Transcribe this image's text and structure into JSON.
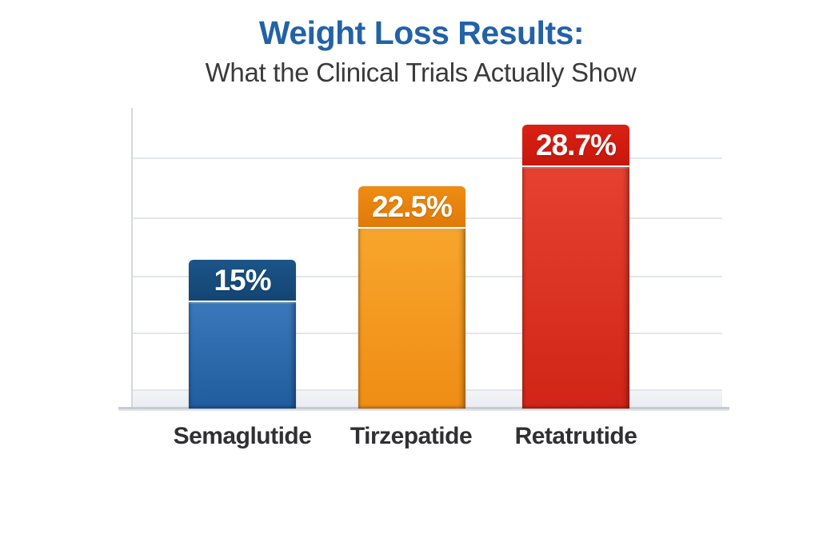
{
  "header": {
    "title": "Weight Loss Results:",
    "subtitle": "What the Clinical Trials Actually Show"
  },
  "chart_data": {
    "type": "bar",
    "title": "Weight Loss Results: What the Clinical Trials Actually Show",
    "categories": [
      "Semaglutide",
      "Tirzepatide",
      "Retatrutide"
    ],
    "values": [
      15,
      22.5,
      28.7
    ],
    "value_labels": [
      "15%",
      "22.5%",
      "28.7%"
    ],
    "xlabel": "",
    "ylabel": "",
    "ylim": [
      0,
      30.3
    ],
    "grid": true,
    "legend": false,
    "y_tick_labels_shown": false,
    "series_colors": [
      {
        "cap_top": "#1b5587",
        "cap_bottom": "#134573",
        "body_top": "#3a78bb",
        "body_bottom": "#205c9e"
      },
      {
        "cap_top": "#ee8c12",
        "cap_bottom": "#df7a08",
        "body_top": "#f8a52c",
        "body_bottom": "#ef8d14"
      },
      {
        "cap_top": "#da2114",
        "cap_bottom": "#c7170c",
        "body_top": "#e64131",
        "body_bottom": "#d02518"
      }
    ]
  },
  "colors": {
    "title_color": "#2262a7",
    "subtitle_color": "#3a3a3c",
    "category_label_color": "#303033",
    "value_text_color": "#ffffff",
    "gridline_color": "#e2e6ec",
    "axis_color": "#d4d8df",
    "axis_strong_color": "#c6cbd3",
    "background": "#ffffff"
  }
}
